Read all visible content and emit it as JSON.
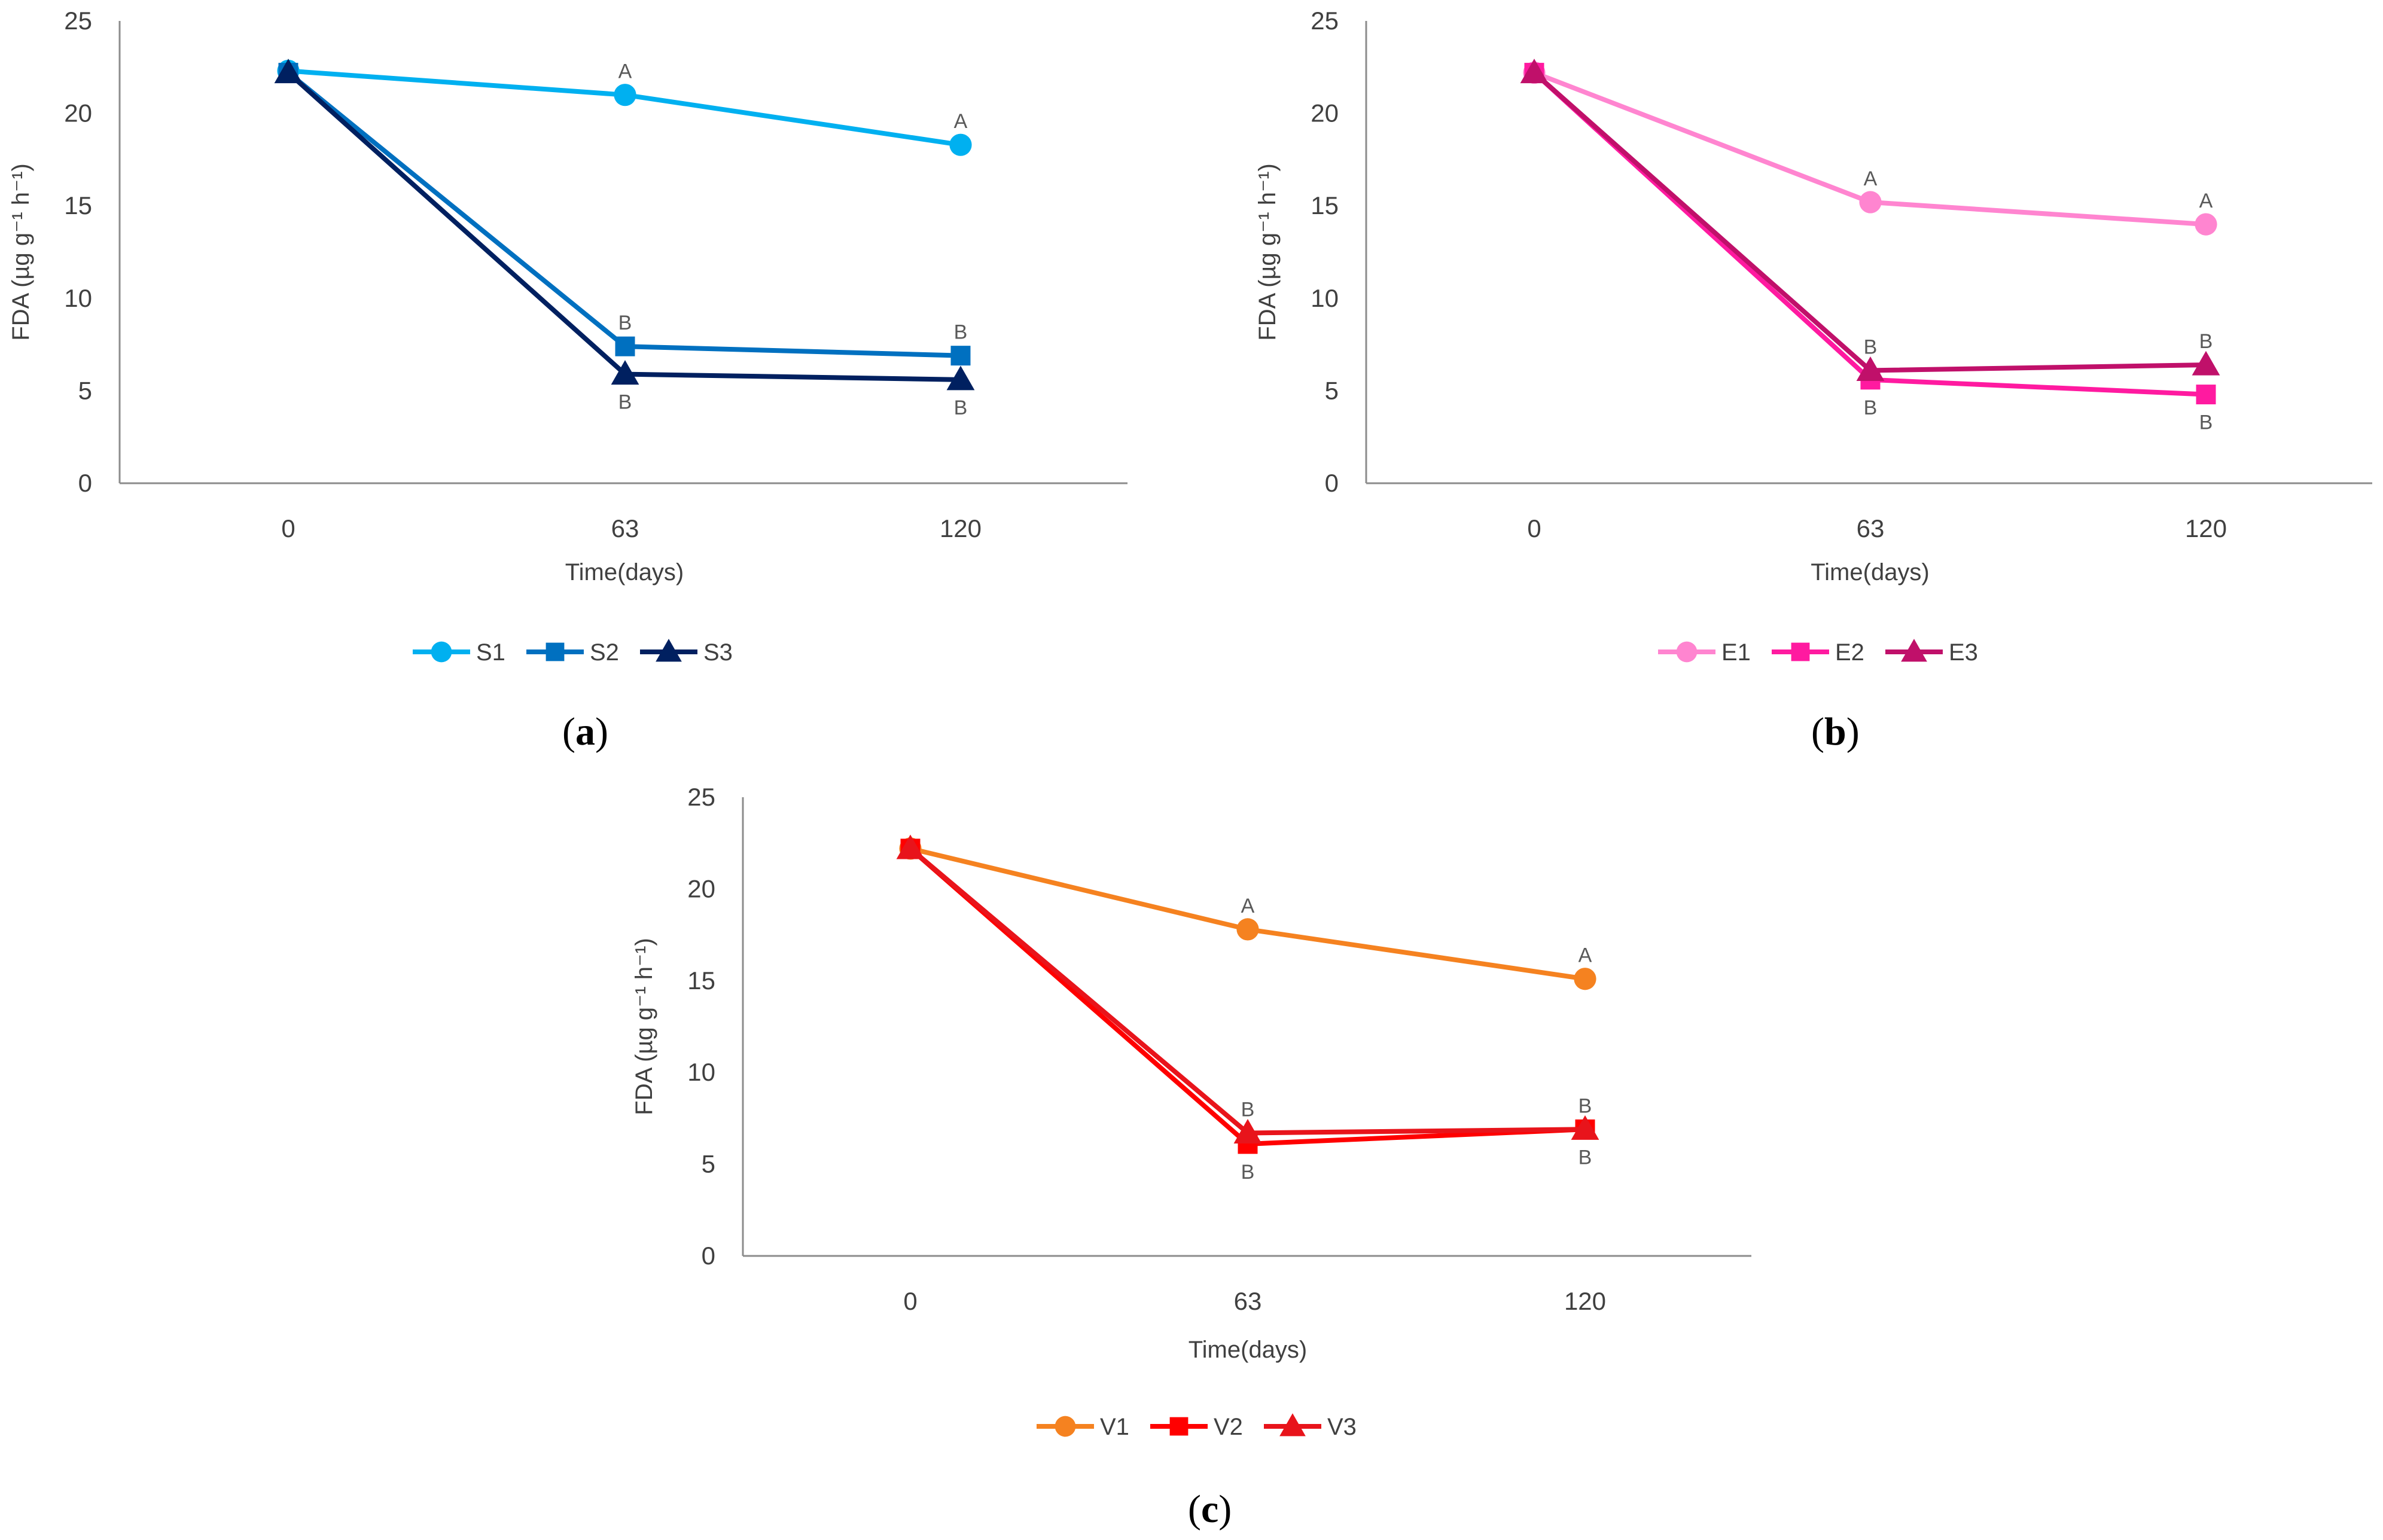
{
  "figure": {
    "panels": [
      "a",
      "b",
      "c"
    ]
  },
  "chart_data": [
    {
      "id": "a",
      "type": "line",
      "panel_label": "a",
      "xlabel": "Time(days)",
      "ylabel": "FDA (µg g⁻¹ h⁻¹)",
      "categories": [
        "0",
        "63",
        "120"
      ],
      "ylim": [
        0,
        25
      ],
      "yticks": [
        0,
        5,
        10,
        15,
        20,
        25
      ],
      "grid": false,
      "legend": "bottom",
      "series": [
        {
          "name": "S1",
          "color": "#00B0F0",
          "marker": "circle",
          "values": [
            22.3,
            21.0,
            18.3
          ],
          "letters": [
            "",
            "A",
            "A"
          ],
          "letter_pos": "above"
        },
        {
          "name": "S2",
          "color": "#0070C0",
          "marker": "square",
          "values": [
            22.2,
            7.4,
            6.9
          ],
          "letters": [
            "",
            "B",
            "B"
          ],
          "letter_pos": "above"
        },
        {
          "name": "S3",
          "color": "#002060",
          "marker": "triangle",
          "values": [
            22.2,
            5.9,
            5.6
          ],
          "letters": [
            "",
            "B",
            "B"
          ],
          "letter_pos": "below"
        }
      ]
    },
    {
      "id": "b",
      "type": "line",
      "panel_label": "b",
      "xlabel": "Time(days)",
      "ylabel": "FDA (µg g⁻¹ h⁻¹)",
      "categories": [
        "0",
        "63",
        "120"
      ],
      "ylim": [
        0,
        25
      ],
      "yticks": [
        0,
        5,
        10,
        15,
        20,
        25
      ],
      "grid": false,
      "legend": "bottom",
      "series": [
        {
          "name": "E1",
          "color": "#FF85D0",
          "marker": "circle",
          "values": [
            22.2,
            15.2,
            14.0
          ],
          "letters": [
            "",
            "A",
            "A"
          ],
          "letter_pos": "above"
        },
        {
          "name": "E2",
          "color": "#FF1AA0",
          "marker": "square",
          "values": [
            22.2,
            5.6,
            4.8
          ],
          "letters": [
            "",
            "B",
            "B"
          ],
          "letter_pos": "below"
        },
        {
          "name": "E3",
          "color": "#C0106A",
          "marker": "triangle",
          "values": [
            22.2,
            6.1,
            6.4
          ],
          "letters": [
            "",
            "B",
            "B"
          ],
          "letter_pos": "above"
        }
      ]
    },
    {
      "id": "c",
      "type": "line",
      "panel_label": "c",
      "xlabel": "Time(days)",
      "ylabel": "FDA (µg g⁻¹ h⁻¹)",
      "categories": [
        "0",
        "63",
        "120"
      ],
      "ylim": [
        0,
        25
      ],
      "yticks": [
        0,
        5,
        10,
        15,
        20,
        25
      ],
      "grid": false,
      "legend": "bottom",
      "series": [
        {
          "name": "V1",
          "color": "#F58220",
          "marker": "circle",
          "values": [
            22.2,
            17.8,
            15.1
          ],
          "letters": [
            "",
            "A",
            "A"
          ],
          "letter_pos": "above"
        },
        {
          "name": "V2",
          "color": "#FF0000",
          "marker": "square",
          "values": [
            22.2,
            6.1,
            6.9
          ],
          "letters": [
            "",
            "B",
            "B"
          ],
          "letter_pos": "below"
        },
        {
          "name": "V3",
          "color": "#E8141B",
          "marker": "triangle",
          "values": [
            22.2,
            6.7,
            6.9
          ],
          "letters": [
            "",
            "B",
            "B"
          ],
          "letter_pos": "above"
        }
      ]
    }
  ]
}
